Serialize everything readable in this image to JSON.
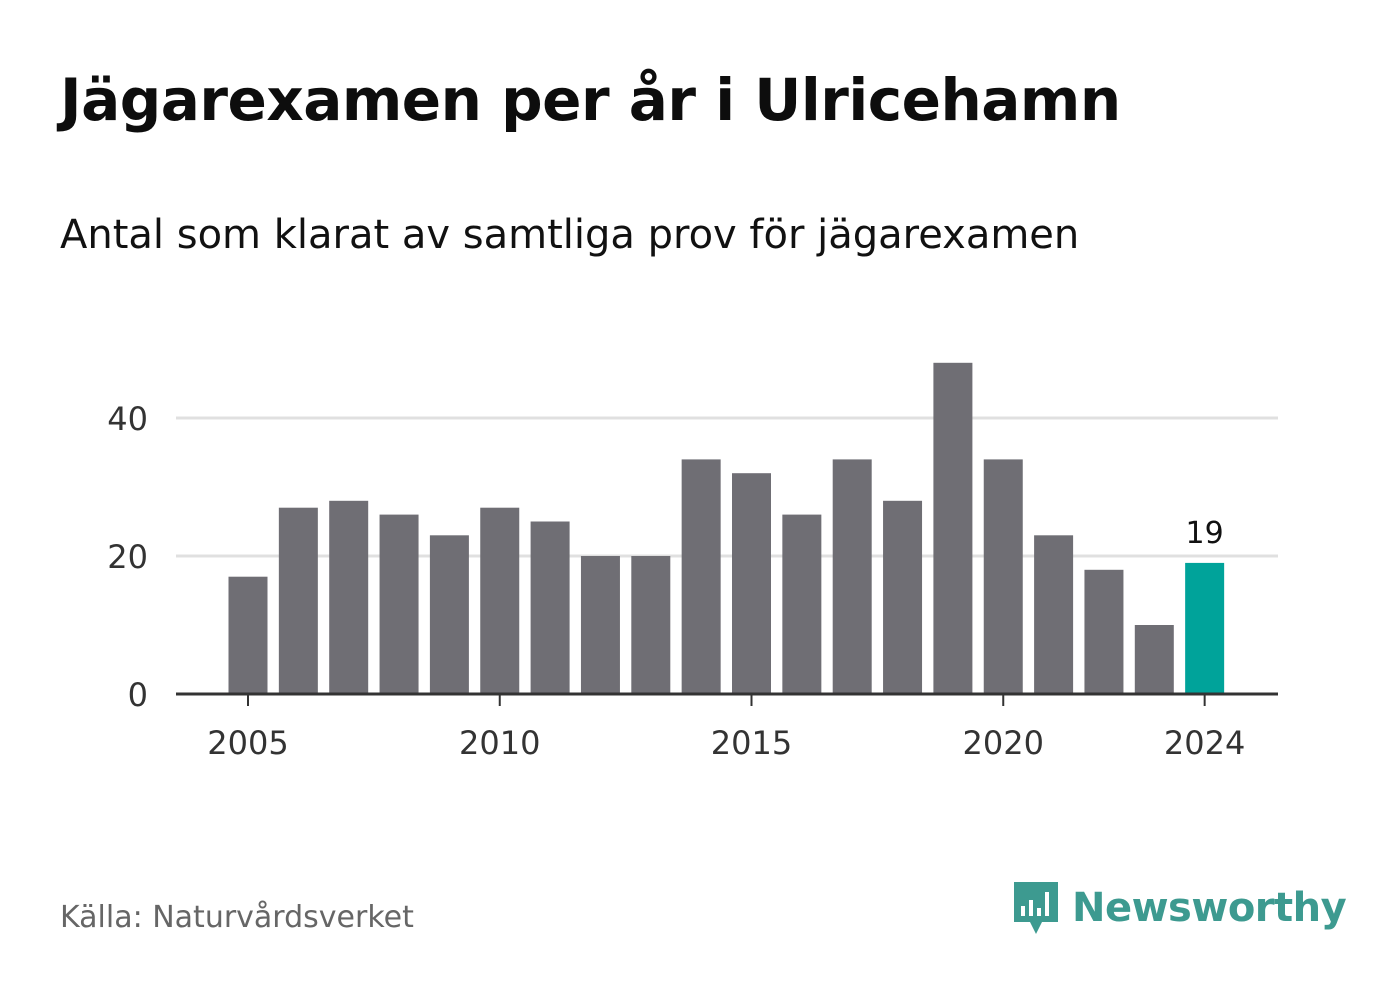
{
  "title": "Jägarexamen per år i Ulricehamn",
  "subtitle": "Antal som klarat av samtliga prov för jägarexamen",
  "source": "Källa: Naturvårdsverket",
  "brand": {
    "name": "Newsworthy",
    "icon": "newsworthy-logo-icon",
    "color": "#3d9a90"
  },
  "colors": {
    "bar": "#6f6e74",
    "highlight": "#00a39a",
    "grid": "#e0e0e0",
    "axis": "#333333"
  },
  "chart_data": {
    "type": "bar",
    "categories": [
      "2005",
      "2006",
      "2007",
      "2008",
      "2009",
      "2010",
      "2011",
      "2012",
      "2013",
      "2014",
      "2015",
      "2016",
      "2017",
      "2018",
      "2019",
      "2020",
      "2021",
      "2022",
      "2023",
      "2024"
    ],
    "values": [
      17,
      27,
      28,
      26,
      23,
      27,
      25,
      20,
      20,
      34,
      32,
      26,
      34,
      28,
      48,
      34,
      23,
      18,
      10,
      19
    ],
    "x_tick_labels": [
      "2005",
      "2010",
      "2015",
      "2020",
      "2024"
    ],
    "y_ticks": [
      0,
      20,
      40
    ],
    "ylim": [
      0,
      48
    ],
    "grid": true,
    "highlight": {
      "category": "2024",
      "label": "19"
    }
  }
}
